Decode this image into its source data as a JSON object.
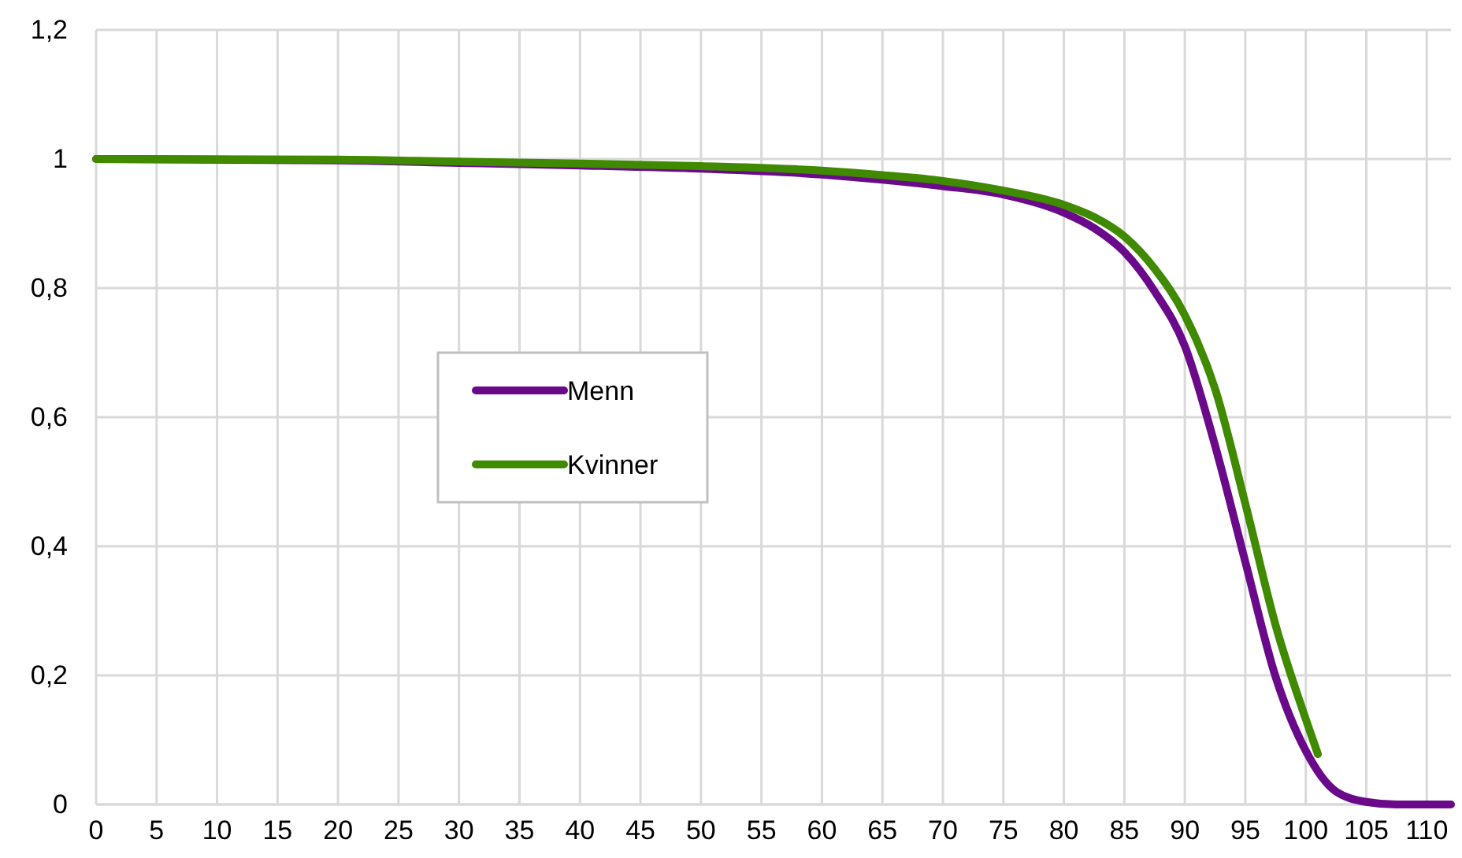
{
  "chart_data": {
    "type": "line",
    "xlim": [
      0,
      112
    ],
    "xticks": [
      0,
      5,
      10,
      15,
      20,
      25,
      30,
      35,
      40,
      45,
      50,
      55,
      60,
      65,
      70,
      75,
      80,
      85,
      90,
      95,
      100,
      105,
      110
    ],
    "ylim": [
      0,
      1.2
    ],
    "yticks": [
      {
        "value": 0,
        "label": "0"
      },
      {
        "value": 0.2,
        "label": "0,2"
      },
      {
        "value": 0.4,
        "label": "0,4"
      },
      {
        "value": 0.6,
        "label": "0,6"
      },
      {
        "value": 0.8,
        "label": "0,8"
      },
      {
        "value": 1,
        "label": "1"
      },
      {
        "value": 1.2,
        "label": "1,2"
      }
    ],
    "grid": true,
    "legend": "left",
    "marker": "none",
    "line_style": "solid",
    "series": [
      {
        "name": "Menn",
        "color": "#6a0a8a",
        "x": [
          0,
          20,
          30,
          40,
          50,
          60,
          65,
          70,
          75,
          80,
          82.5,
          85,
          87.5,
          90,
          92.5,
          95,
          97.5,
          100,
          102.5,
          105,
          107.5,
          112
        ],
        "values": [
          1,
          0.998,
          0.994,
          0.99,
          0.985,
          0.976,
          0.968,
          0.958,
          0.945,
          0.917,
          0.893,
          0.856,
          0.795,
          0.71,
          0.556,
          0.376,
          0.198,
          0.083,
          0.02,
          0.004,
          0,
          0
        ]
      },
      {
        "name": "Kvinner",
        "color": "#3f8a00",
        "x": [
          0,
          20,
          30,
          40,
          50,
          60,
          65,
          70,
          75,
          80,
          82.5,
          85,
          87.5,
          90,
          92.5,
          95,
          97.5,
          100,
          101
        ],
        "values": [
          1,
          0.999,
          0.996,
          0.993,
          0.989,
          0.982,
          0.975,
          0.966,
          0.951,
          0.929,
          0.91,
          0.88,
          0.83,
          0.758,
          0.644,
          0.466,
          0.278,
          0.132,
          0.078
        ]
      }
    ]
  }
}
